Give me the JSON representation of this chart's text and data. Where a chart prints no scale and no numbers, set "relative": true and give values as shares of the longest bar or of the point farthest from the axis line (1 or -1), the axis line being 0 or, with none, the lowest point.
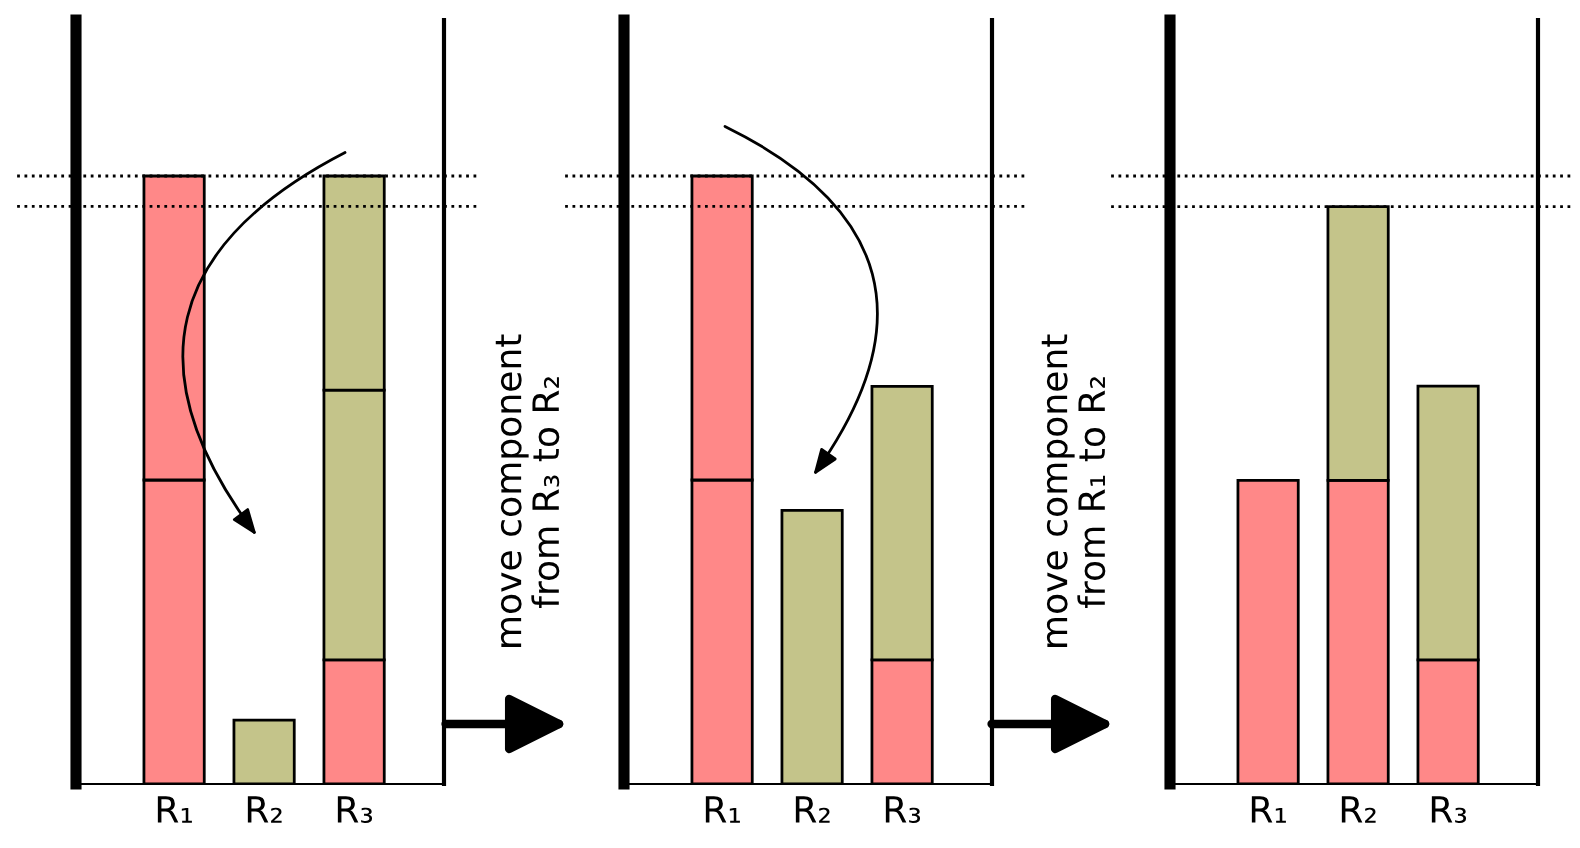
{
  "chart_data": [
    {
      "type": "bar",
      "stacked": true,
      "relative": true,
      "categories": [
        "R₁",
        "R₂",
        "R₃"
      ],
      "series": [
        {
          "colors": [
            "#ff8888",
            "#c4c48a",
            "#ff8888"
          ],
          "values": [
            0.5,
            0.105,
            0.204
          ]
        },
        {
          "colors": [
            "#ff8888",
            "#c4c48a",
            "#c4c48a"
          ],
          "values": [
            0.5,
            null,
            0.444
          ]
        },
        {
          "colors": [
            "#ff8888",
            "#c4c48a",
            "#c4c48a"
          ],
          "values": [
            null,
            null,
            0.352
          ]
        }
      ],
      "ref_lines": [
        {
          "axis": "y",
          "value": 1,
          "line_style": "dotted"
        },
        {
          "axis": "y",
          "value": 0.95,
          "line_style": "dotted"
        }
      ]
    },
    {
      "type": "bar",
      "stacked": true,
      "relative": true,
      "categories": [
        "R₁",
        "R₂",
        "R₃"
      ],
      "series": [
        {
          "colors": [
            "#ff8888",
            "#c4c48a",
            "#ff8888"
          ],
          "values": [
            0.5,
            0.45,
            0.204
          ]
        },
        {
          "colors": [
            "#ff8888",
            "#c4c48a",
            "#c4c48a"
          ],
          "values": [
            0.5,
            null,
            0.45
          ]
        }
      ],
      "ref_lines": [
        {
          "axis": "y",
          "value": 1,
          "line_style": "dotted"
        },
        {
          "axis": "y",
          "value": 0.95,
          "line_style": "dotted"
        }
      ],
      "annotations": [
        "move component\nfrom R₃ to R₂"
      ]
    },
    {
      "type": "bar",
      "stacked": true,
      "relative": true,
      "categories": [
        "R₁",
        "R₂",
        "R₃"
      ],
      "series": [
        {
          "colors": [
            "#ff8888",
            "#ff8888",
            "#ff8888"
          ],
          "values": [
            0.526,
            0.526,
            0.215
          ]
        },
        {
          "colors": [
            "#c4c48a",
            "#c4c48a",
            "#c4c48a"
          ],
          "values": [
            null,
            0.474,
            0.474
          ]
        }
      ],
      "ref_lines": [
        {
          "axis": "y",
          "value": 1.053,
          "line_style": "dotted"
        },
        {
          "axis": "y",
          "value": 1,
          "line_style": "dotted"
        }
      ],
      "annotations": [
        "move component\nfrom R₁ to R₂"
      ]
    }
  ]
}
